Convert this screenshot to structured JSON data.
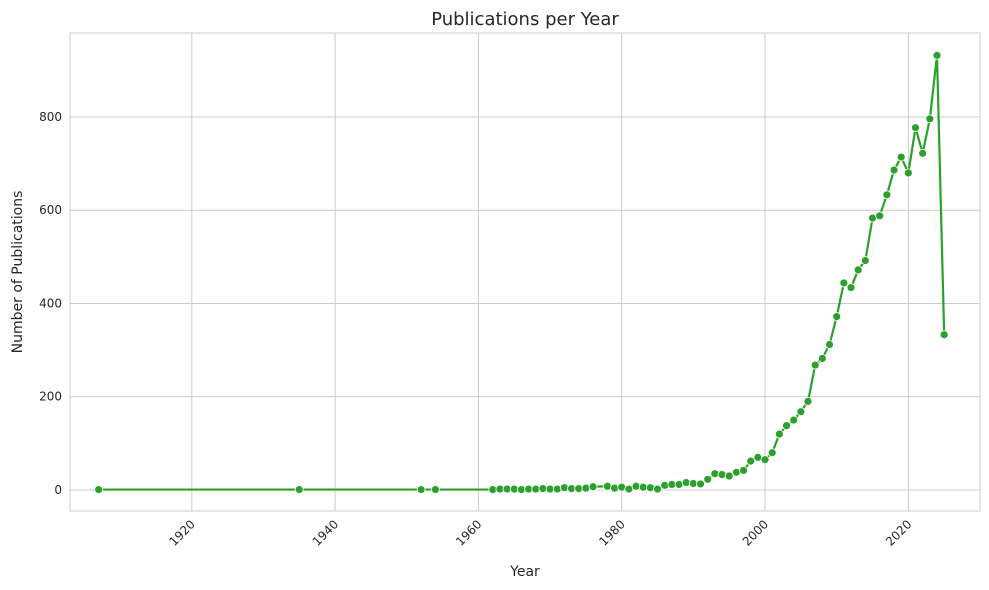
{
  "colors": {
    "series": "#2ca02c",
    "grid": "#cccccc",
    "text": "#262626",
    "background": "#ffffff"
  },
  "chart_data": {
    "type": "line",
    "title": "Publications per Year",
    "xlabel": "Year",
    "ylabel": "Number of Publications",
    "xlim": [
      1903,
      2030
    ],
    "ylim": [
      -45,
      980
    ],
    "xticks": [
      1920,
      1940,
      1960,
      1980,
      2000,
      2020
    ],
    "yticks": [
      0,
      200,
      400,
      600,
      800
    ],
    "xtick_rotation": 45,
    "grid": true,
    "marker": "circle",
    "series": [
      {
        "x": [
          1907,
          1935,
          1952,
          1954,
          1962,
          1963,
          1964,
          1965,
          1966,
          1967,
          1968,
          1969,
          1970,
          1971,
          1972,
          1973,
          1974,
          1975,
          1976,
          1978,
          1979,
          1980,
          1981,
          1982,
          1983,
          1984,
          1985,
          1986,
          1987,
          1988,
          1989,
          1990,
          1991,
          1992,
          1993,
          1994,
          1995,
          1996,
          1997,
          1998,
          1999,
          2000,
          2001,
          2002,
          2003,
          2004,
          2005,
          2006,
          2007,
          2008,
          2009,
          2010,
          2011,
          2012,
          2013,
          2014,
          2015,
          2016,
          2017,
          2018,
          2019,
          2020,
          2021,
          2022,
          2023,
          2024,
          2025
        ],
        "y": [
          1,
          1,
          1,
          1,
          1,
          2,
          2,
          2,
          1,
          2,
          2,
          3,
          2,
          2,
          5,
          3,
          3,
          4,
          7,
          8,
          4,
          6,
          2,
          8,
          6,
          5,
          2,
          10,
          12,
          12,
          16,
          14,
          13,
          23,
          35,
          33,
          30,
          38,
          42,
          62,
          70,
          65,
          80,
          120,
          138,
          150,
          168,
          190,
          268,
          282,
          312,
          372,
          444,
          434,
          472,
          492,
          583,
          588,
          633,
          686,
          714,
          680,
          777,
          722,
          796,
          932,
          333
        ]
      }
    ]
  }
}
